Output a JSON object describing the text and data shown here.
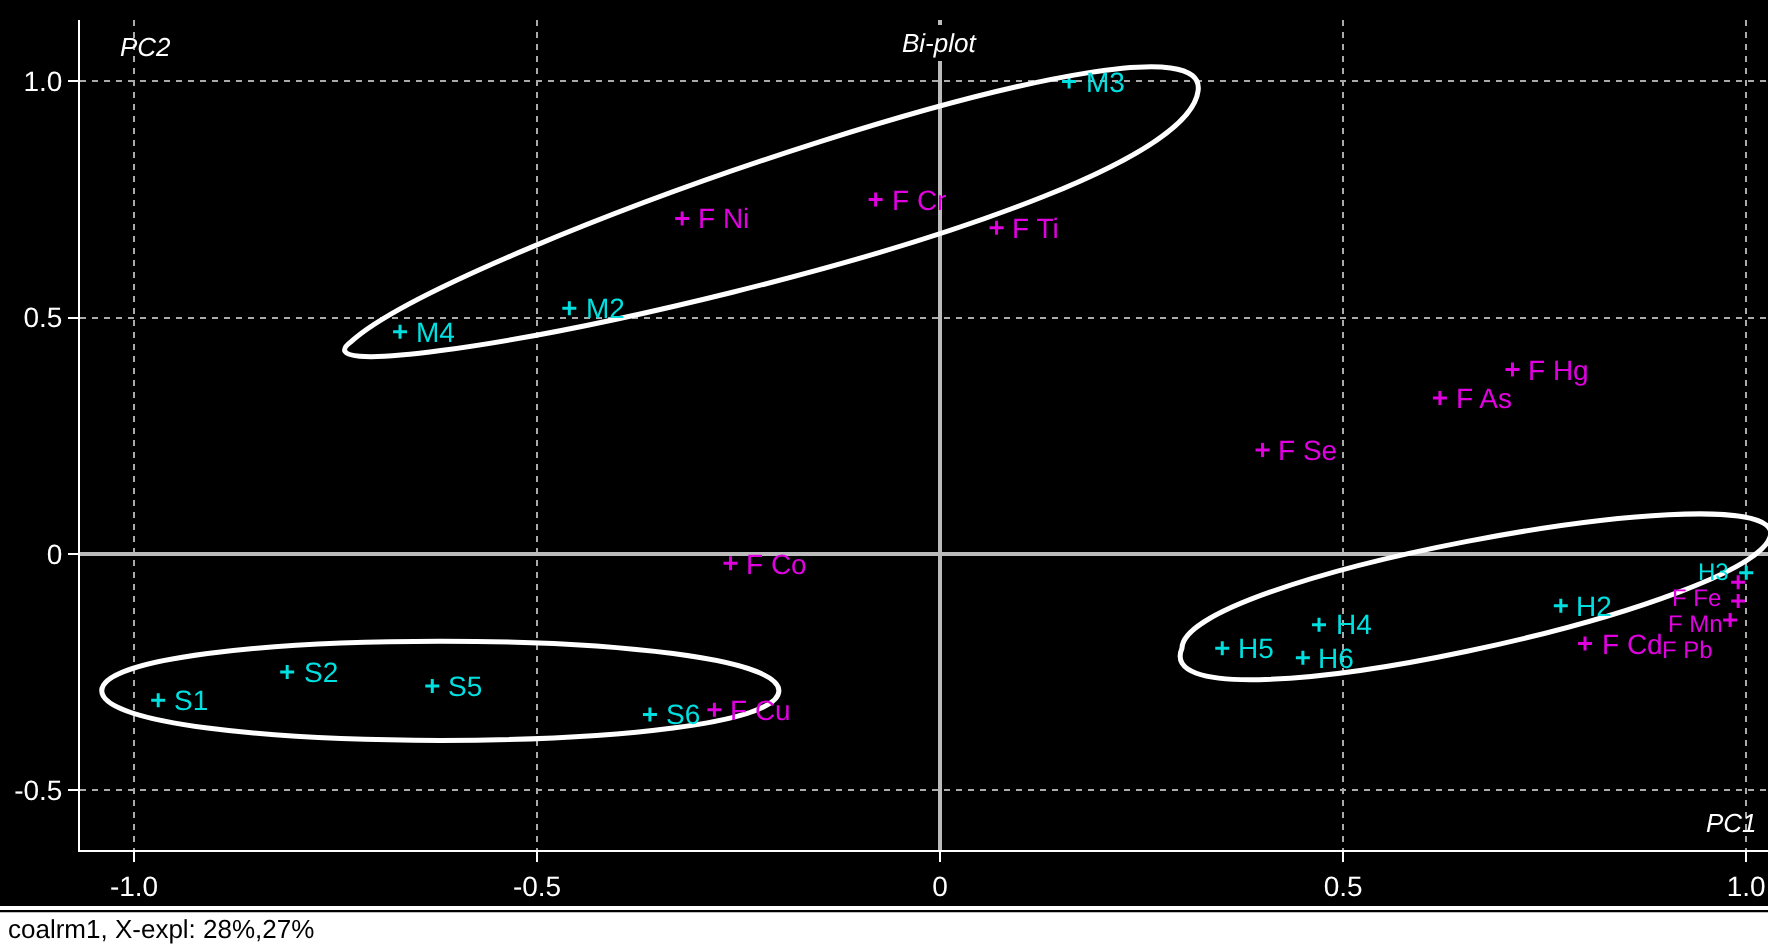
{
  "chart_data": {
    "type": "scatter",
    "title": "Bi-plot",
    "xlabel": "PC1",
    "ylabel": "PC2",
    "xlim": [
      -1.067,
      1.027
    ],
    "ylim": [
      -0.627,
      1.13
    ],
    "xticks": [
      {
        "value": -1.0,
        "label": "-1.0"
      },
      -0.5,
      0,
      0.5,
      {
        "value": 1.0,
        "label": "1.0"
      }
    ],
    "yticks": [
      -0.5,
      0,
      0.5,
      {
        "value": 1.0,
        "label": "1.0"
      }
    ],
    "grid": true,
    "marker": "cross",
    "series": [
      {
        "color": "#00e0e0",
        "x": [
          -0.97,
          -0.81,
          -0.63,
          -0.36,
          -0.67,
          -0.46,
          0.16,
          0.35,
          0.47,
          0.45,
          0.77,
          1.0
        ],
        "values": [
          -0.31,
          -0.25,
          -0.28,
          -0.34,
          0.47,
          0.52,
          1.0,
          -0.2,
          -0.15,
          -0.22,
          -0.11,
          -0.04
        ]
      },
      {
        "color": "#e000e0",
        "x": [
          -0.28,
          -0.26,
          -0.32,
          -0.08,
          0.07,
          0.4,
          0.62,
          0.71,
          0.8,
          0.99,
          0.99,
          0.98
        ],
        "values": [
          -0.33,
          -0.02,
          0.71,
          0.75,
          0.69,
          0.22,
          0.33,
          0.39,
          -0.19,
          -0.06,
          -0.1,
          -0.14
        ]
      }
    ],
    "annotations": [
      {
        "text": "S1",
        "x": -0.97,
        "y": -0.31
      },
      {
        "text": "S2",
        "x": -0.81,
        "y": -0.25
      },
      {
        "text": "S5",
        "x": -0.63,
        "y": -0.28
      },
      {
        "text": "S6",
        "x": -0.36,
        "y": -0.34
      },
      {
        "text": "M4",
        "x": -0.67,
        "y": 0.47
      },
      {
        "text": "M2",
        "x": -0.46,
        "y": 0.52
      },
      {
        "text": "M3",
        "x": 0.16,
        "y": 1.0
      },
      {
        "text": "H5",
        "x": 0.35,
        "y": -0.2
      },
      {
        "text": "H4",
        "x": 0.47,
        "y": -0.15
      },
      {
        "text": "H6",
        "x": 0.45,
        "y": -0.22
      },
      {
        "text": "H2",
        "x": 0.77,
        "y": -0.11
      },
      {
        "text": "H3",
        "x": 1.0,
        "y": -0.04
      },
      {
        "text": "F Cu",
        "x": -0.28,
        "y": -0.33
      },
      {
        "text": "F Co",
        "x": -0.26,
        "y": -0.02
      },
      {
        "text": "F Ni",
        "x": -0.32,
        "y": 0.71
      },
      {
        "text": "F Cr",
        "x": -0.08,
        "y": 0.75
      },
      {
        "text": "F Ti",
        "x": 0.07,
        "y": 0.69
      },
      {
        "text": "F Se",
        "x": 0.4,
        "y": 0.22
      },
      {
        "text": "F As",
        "x": 0.62,
        "y": 0.33
      },
      {
        "text": "F Hg",
        "x": 0.71,
        "y": 0.39
      },
      {
        "text": "F Cd",
        "x": 0.8,
        "y": -0.19
      },
      {
        "text": "F Fe",
        "x": 0.99,
        "y": -0.06
      },
      {
        "text": "F Mn",
        "x": 0.99,
        "y": -0.1
      },
      {
        "text": "F Pb",
        "x": 0.98,
        "y": -0.14
      },
      "coalrm1, X-expl: 28%,27%"
    ]
  }
}
